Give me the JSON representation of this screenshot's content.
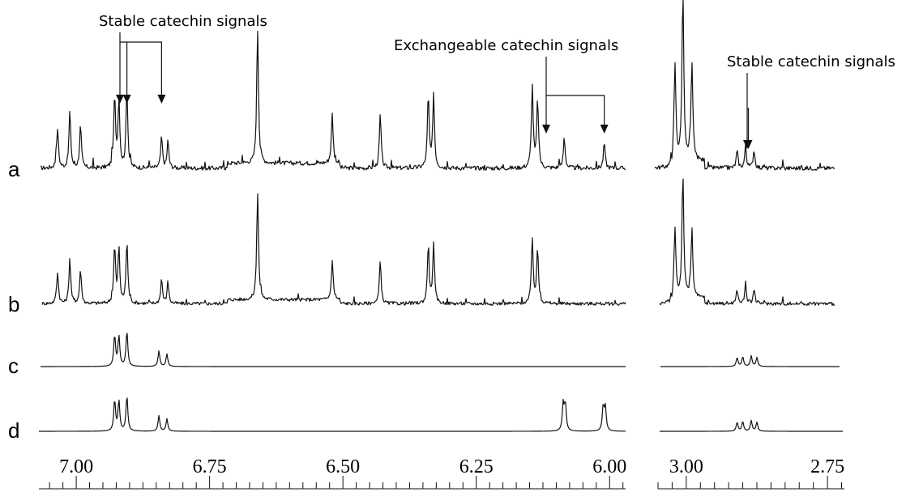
{
  "chart_data": {
    "type": "line",
    "title": "",
    "xlabel": "",
    "ylabel": "",
    "x_axis_reversed": true,
    "panels": [
      {
        "xlim": [
          7.07,
          5.97
        ],
        "ticks": [
          7.0,
          6.75,
          6.5,
          6.25,
          6.0
        ],
        "tick_labels": [
          "7.00",
          "6.75",
          "6.50",
          "6.25",
          "6.00"
        ]
      },
      {
        "xlim": [
          3.05,
          2.72
        ],
        "ticks": [
          3.0,
          2.75
        ],
        "tick_labels": [
          "3.00",
          "2.75"
        ]
      }
    ],
    "series": [
      {
        "label": "a",
        "peaks": [
          {
            "ppm": 7.035,
            "h": 0.28
          },
          {
            "ppm": 7.012,
            "h": 0.4
          },
          {
            "ppm": 6.992,
            "h": 0.3
          },
          {
            "ppm": 6.928,
            "h": 0.5
          },
          {
            "ppm": 6.92,
            "h": 0.48
          },
          {
            "ppm": 6.905,
            "h": 0.55
          },
          {
            "ppm": 6.84,
            "h": 0.22
          },
          {
            "ppm": 6.828,
            "h": 0.18
          },
          {
            "ppm": 6.66,
            "h": 0.95
          },
          {
            "ppm": 6.52,
            "h": 0.35
          },
          {
            "ppm": 6.43,
            "h": 0.38
          },
          {
            "ppm": 6.34,
            "h": 0.5
          },
          {
            "ppm": 6.33,
            "h": 0.52
          },
          {
            "ppm": 6.145,
            "h": 0.58
          },
          {
            "ppm": 6.135,
            "h": 0.48
          },
          {
            "ppm": 6.085,
            "h": 0.22
          },
          {
            "ppm": 6.01,
            "h": 0.18
          },
          {
            "ppm": 3.02,
            "h": 0.68
          },
          {
            "ppm": 3.006,
            "h": 1.2
          },
          {
            "ppm": 2.99,
            "h": 0.7
          },
          {
            "ppm": 2.91,
            "h": 0.12
          },
          {
            "ppm": 2.895,
            "h": 0.15
          },
          {
            "ppm": 2.88,
            "h": 0.13
          }
        ]
      },
      {
        "label": "b",
        "peaks": [
          {
            "ppm": 7.035,
            "h": 0.28
          },
          {
            "ppm": 7.012,
            "h": 0.4
          },
          {
            "ppm": 6.992,
            "h": 0.3
          },
          {
            "ppm": 6.928,
            "h": 0.5
          },
          {
            "ppm": 6.92,
            "h": 0.48
          },
          {
            "ppm": 6.905,
            "h": 0.55
          },
          {
            "ppm": 6.84,
            "h": 0.22
          },
          {
            "ppm": 6.828,
            "h": 0.18
          },
          {
            "ppm": 6.66,
            "h": 0.95
          },
          {
            "ppm": 6.52,
            "h": 0.35
          },
          {
            "ppm": 6.43,
            "h": 0.38
          },
          {
            "ppm": 6.34,
            "h": 0.5
          },
          {
            "ppm": 6.33,
            "h": 0.52
          },
          {
            "ppm": 6.145,
            "h": 0.58
          },
          {
            "ppm": 6.135,
            "h": 0.48
          },
          {
            "ppm": 3.02,
            "h": 0.62
          },
          {
            "ppm": 3.006,
            "h": 1.1
          },
          {
            "ppm": 2.99,
            "h": 0.6
          },
          {
            "ppm": 2.91,
            "h": 0.12
          },
          {
            "ppm": 2.895,
            "h": 0.15
          },
          {
            "ppm": 2.88,
            "h": 0.13
          }
        ]
      },
      {
        "label": "c",
        "peaks": [
          {
            "ppm": 6.928,
            "h": 0.7
          },
          {
            "ppm": 6.92,
            "h": 0.68
          },
          {
            "ppm": 6.905,
            "h": 0.8
          },
          {
            "ppm": 6.845,
            "h": 0.35
          },
          {
            "ppm": 6.83,
            "h": 0.28
          },
          {
            "ppm": 2.91,
            "h": 0.2
          },
          {
            "ppm": 2.9,
            "h": 0.22
          },
          {
            "ppm": 2.885,
            "h": 0.24
          },
          {
            "ppm": 2.875,
            "h": 0.2
          }
        ]
      },
      {
        "label": "d",
        "peaks": [
          {
            "ppm": 6.928,
            "h": 0.7
          },
          {
            "ppm": 6.92,
            "h": 0.68
          },
          {
            "ppm": 6.905,
            "h": 0.8
          },
          {
            "ppm": 6.845,
            "h": 0.35
          },
          {
            "ppm": 6.83,
            "h": 0.28
          },
          {
            "ppm": 6.087,
            "h": 0.6
          },
          {
            "ppm": 6.083,
            "h": 0.6
          },
          {
            "ppm": 6.012,
            "h": 0.55
          },
          {
            "ppm": 6.008,
            "h": 0.52
          },
          {
            "ppm": 2.91,
            "h": 0.2
          },
          {
            "ppm": 2.9,
            "h": 0.22
          },
          {
            "ppm": 2.885,
            "h": 0.24
          },
          {
            "ppm": 2.875,
            "h": 0.2
          }
        ]
      }
    ],
    "annotations": [
      {
        "text": "Stable catechin signals",
        "targets_ppm": [
          6.928,
          6.905,
          6.84
        ]
      },
      {
        "text": "Exchangeable catechin signals",
        "targets_ppm": [
          6.085,
          6.01
        ]
      },
      {
        "text": "Stable catechin signals",
        "targets_ppm": [
          2.91,
          2.89
        ]
      }
    ]
  }
}
